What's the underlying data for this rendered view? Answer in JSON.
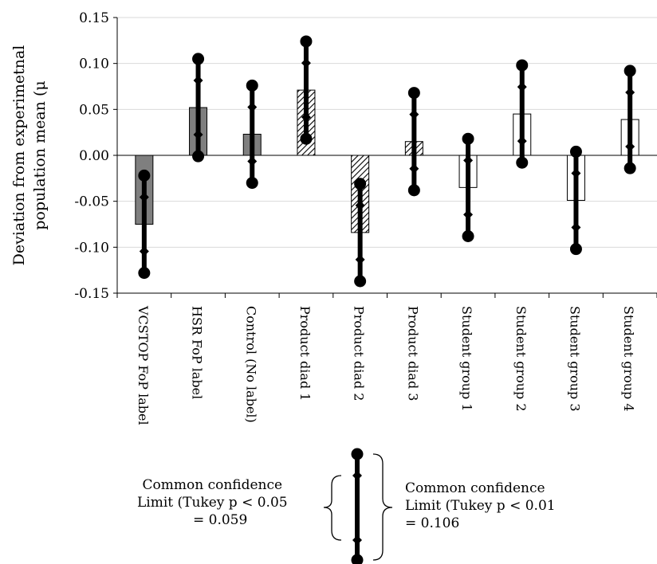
{
  "chart_data": {
    "type": "bar",
    "title": "",
    "ylabel": "Deviation from experimetnal population mean (μ",
    "xlabel": "",
    "ylim": [
      -0.15,
      0.15
    ],
    "yticks": [
      "0.15",
      "0.10",
      "0.05",
      "0.00",
      "-0.05",
      "-0.10",
      "-0.15"
    ],
    "ytick_values": [
      0.15,
      0.1,
      0.05,
      0.0,
      -0.05,
      -0.1,
      -0.15
    ],
    "grid": true,
    "categories": [
      "VCSTOP FoP label",
      "HSR FoP label",
      "Control (No label)",
      "Product diad 1",
      "Product diad 2",
      "Product diad 3",
      "Student group 1",
      "Student group 2",
      "Student group 3",
      "Student group 4"
    ],
    "values": [
      -0.075,
      0.052,
      0.023,
      0.071,
      -0.084,
      0.015,
      -0.035,
      0.045,
      -0.049,
      0.039
    ],
    "fills": [
      "gray",
      "gray",
      "gray",
      "hatch",
      "hatch",
      "hatch",
      "white",
      "white",
      "white",
      "white"
    ],
    "interval_p05": [
      [
        -0.1045,
        -0.0455
      ],
      [
        0.0225,
        0.0815
      ],
      [
        -0.0065,
        0.0525
      ],
      [
        0.0415,
        0.1005
      ],
      [
        -0.1135,
        -0.0545
      ],
      [
        -0.0145,
        0.0445
      ],
      [
        -0.0645,
        -0.0055
      ],
      [
        0.0155,
        0.0745
      ],
      [
        -0.0785,
        -0.0195
      ],
      [
        0.0095,
        0.0685
      ]
    ],
    "interval_p01": [
      [
        -0.128,
        -0.022
      ],
      [
        -0.001,
        0.105
      ],
      [
        -0.03,
        0.076
      ],
      [
        0.018,
        0.124
      ],
      [
        -0.137,
        -0.031
      ],
      [
        -0.038,
        0.068
      ],
      [
        -0.088,
        0.018
      ],
      [
        -0.008,
        0.098
      ],
      [
        -0.102,
        0.004
      ],
      [
        -0.014,
        0.092
      ]
    ]
  },
  "legend": {
    "left_lines": [
      "Common confidence",
      "Limit (Tukey p < 0.05",
      "= 0.059"
    ],
    "right_lines": [
      "Common confidence",
      "Limit (Tukey p < 0.01",
      "= 0.106"
    ]
  },
  "colors": {
    "gray_bar": "#7f7f7f",
    "grid": "#d9d9d9",
    "axis": "#000000"
  }
}
